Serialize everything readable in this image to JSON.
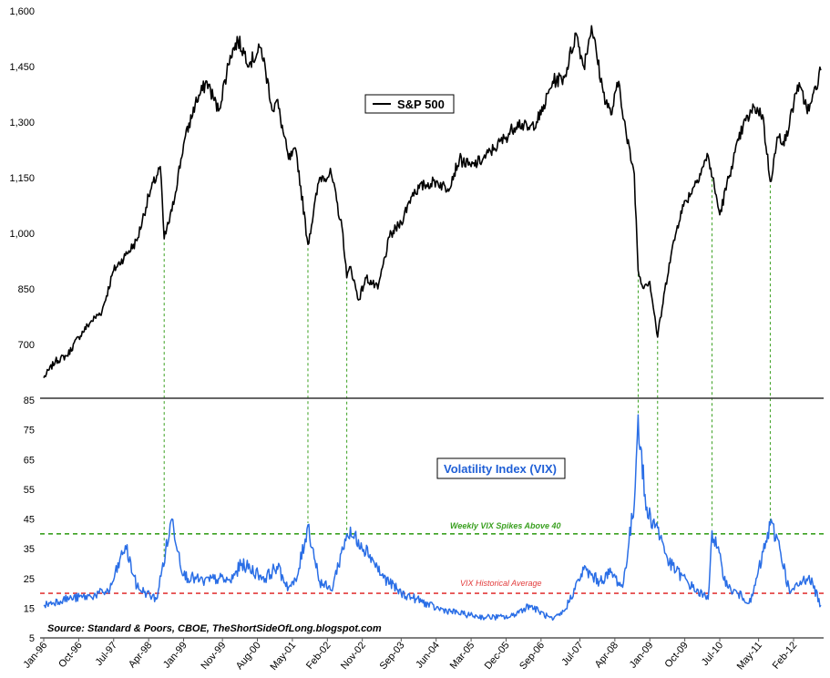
{
  "chart_data": [
    {
      "type": "line",
      "legend": "S&P 500",
      "ylim": [
        600,
        1600
      ],
      "yticks": [
        700,
        850,
        1000,
        1150,
        1300,
        1450,
        1600
      ],
      "ytick_labels": [
        "700",
        "850",
        "1,000",
        "1,150",
        "1,300",
        "1,450",
        "1,600"
      ],
      "line_color": "#000000",
      "series": [
        {
          "x": [
            "1996-01",
            "1996-04",
            "1996-07",
            "1996-10",
            "1997-01",
            "1997-04",
            "1997-07",
            "1997-10",
            "1998-01",
            "1998-04",
            "1998-07",
            "1998-08",
            "1998-10",
            "1999-01",
            "1999-04",
            "1999-07",
            "1999-10",
            "2000-01",
            "2000-03",
            "2000-06",
            "2000-09",
            "2000-12",
            "2001-01",
            "2001-04",
            "2001-06",
            "2001-09",
            "2001-12",
            "2002-03",
            "2002-06",
            "2002-07",
            "2002-08",
            "2002-10",
            "2002-12",
            "2003-03",
            "2003-06",
            "2003-09",
            "2003-12",
            "2004-03",
            "2004-06",
            "2004-09",
            "2004-12",
            "2005-03",
            "2005-06",
            "2005-09",
            "2005-12",
            "2006-03",
            "2006-06",
            "2006-09",
            "2006-12",
            "2007-03",
            "2007-06",
            "2007-08",
            "2007-10",
            "2008-01",
            "2008-03",
            "2008-05",
            "2008-07",
            "2008-09",
            "2008-10",
            "2008-11",
            "2009-01",
            "2009-03",
            "2009-06",
            "2009-09",
            "2009-12",
            "2010-04",
            "2010-07",
            "2010-10",
            "2011-01",
            "2011-04",
            "2011-06",
            "2011-08",
            "2011-10",
            "2011-12",
            "2012-03",
            "2012-06",
            "2012-09"
          ],
          "values": [
            610,
            655,
            670,
            720,
            760,
            790,
            900,
            940,
            980,
            1100,
            1180,
            985,
            1060,
            1240,
            1350,
            1410,
            1330,
            1480,
            1520,
            1460,
            1500,
            1330,
            1360,
            1200,
            1220,
            970,
            1150,
            1160,
            1000,
            880,
            910,
            820,
            880,
            850,
            990,
            1030,
            1110,
            1130,
            1140,
            1120,
            1200,
            1180,
            1200,
            1230,
            1260,
            1300,
            1280,
            1320,
            1410,
            1420,
            1540,
            1450,
            1560,
            1380,
            1320,
            1410,
            1260,
            1160,
            900,
            860,
            870,
            720,
            920,
            1060,
            1120,
            1210,
            1050,
            1180,
            1290,
            1340,
            1320,
            1140,
            1260,
            1250,
            1400,
            1330,
            1440
          ]
        }
      ]
    },
    {
      "type": "line",
      "legend": "Volatility Index (VIX)",
      "ylim": [
        5,
        85
      ],
      "yticks": [
        5,
        15,
        25,
        35,
        45,
        55,
        65,
        75,
        85
      ],
      "ytick_labels": [
        "5",
        "15",
        "25",
        "35",
        "45",
        "55",
        "65",
        "75",
        "85"
      ],
      "line_color": "#2a6ee6",
      "reference_lines": [
        {
          "value": 40,
          "label": "Weekly VIX Spikes Above 40",
          "color": "#3aa020"
        },
        {
          "value": 20,
          "label": "VIX Historical Average",
          "color": "#e23b3b"
        }
      ],
      "series": [
        {
          "x": [
            "1996-01",
            "1996-06",
            "1997-01",
            "1997-06",
            "1997-10",
            "1998-01",
            "1998-06",
            "1998-10",
            "1999-01",
            "1999-06",
            "1999-10",
            "2000-01",
            "2000-04",
            "2000-10",
            "2001-01",
            "2001-04",
            "2001-06",
            "2001-09",
            "2001-12",
            "2002-03",
            "2002-07",
            "2002-10",
            "2003-01",
            "2003-04",
            "2003-09",
            "2004-01",
            "2004-06",
            "2005-01",
            "2005-06",
            "2006-01",
            "2006-06",
            "2006-12",
            "2007-03",
            "2007-08",
            "2007-12",
            "2008-03",
            "2008-06",
            "2008-09",
            "2008-10",
            "2008-12",
            "2009-03",
            "2009-06",
            "2009-12",
            "2010-04",
            "2010-05",
            "2010-09",
            "2011-03",
            "2011-08",
            "2011-10",
            "2012-01",
            "2012-06",
            "2012-09"
          ],
          "values": [
            16,
            18,
            19,
            21,
            36,
            22,
            18,
            45,
            26,
            24,
            25,
            24,
            30,
            25,
            29,
            22,
            24,
            43,
            24,
            21,
            40,
            38,
            33,
            26,
            20,
            18,
            15,
            13,
            12,
            12,
            16,
            11,
            14,
            28,
            24,
            27,
            22,
            50,
            80,
            48,
            42,
            30,
            22,
            18,
            41,
            22,
            17,
            43,
            38,
            20,
            26,
            16
          ]
        }
      ]
    }
  ],
  "x_tick_labels": [
    "Jan-96",
    "Oct-96",
    "Jul-97",
    "Apr-98",
    "Jan-99",
    "Nov-99",
    "Aug-00",
    "May-01",
    "Feb-02",
    "Nov-02",
    "Sep-03",
    "Jun-04",
    "Mar-05",
    "Dec-05",
    "Sep-06",
    "Jul-07",
    "Apr-08",
    "Jan-09",
    "Oct-09",
    "Jul-10",
    "May-11",
    "Feb-12"
  ],
  "x_tick_dates": [
    "1996-01",
    "1996-10",
    "1997-07",
    "1998-04",
    "1999-01",
    "1999-11",
    "2000-08",
    "2001-05",
    "2002-02",
    "2002-11",
    "2003-09",
    "2004-06",
    "2005-03",
    "2005-12",
    "2006-09",
    "2007-07",
    "2008-04",
    "2009-01",
    "2009-10",
    "2010-07",
    "2011-05",
    "2012-02"
  ],
  "spike_dates": [
    "1998-08",
    "2001-09",
    "2002-07",
    "2008-10",
    "2009-03",
    "2010-05",
    "2011-08"
  ],
  "source": "Source: Standard & Poors, CBOE, TheShortSideOfLong.blogspot.com"
}
